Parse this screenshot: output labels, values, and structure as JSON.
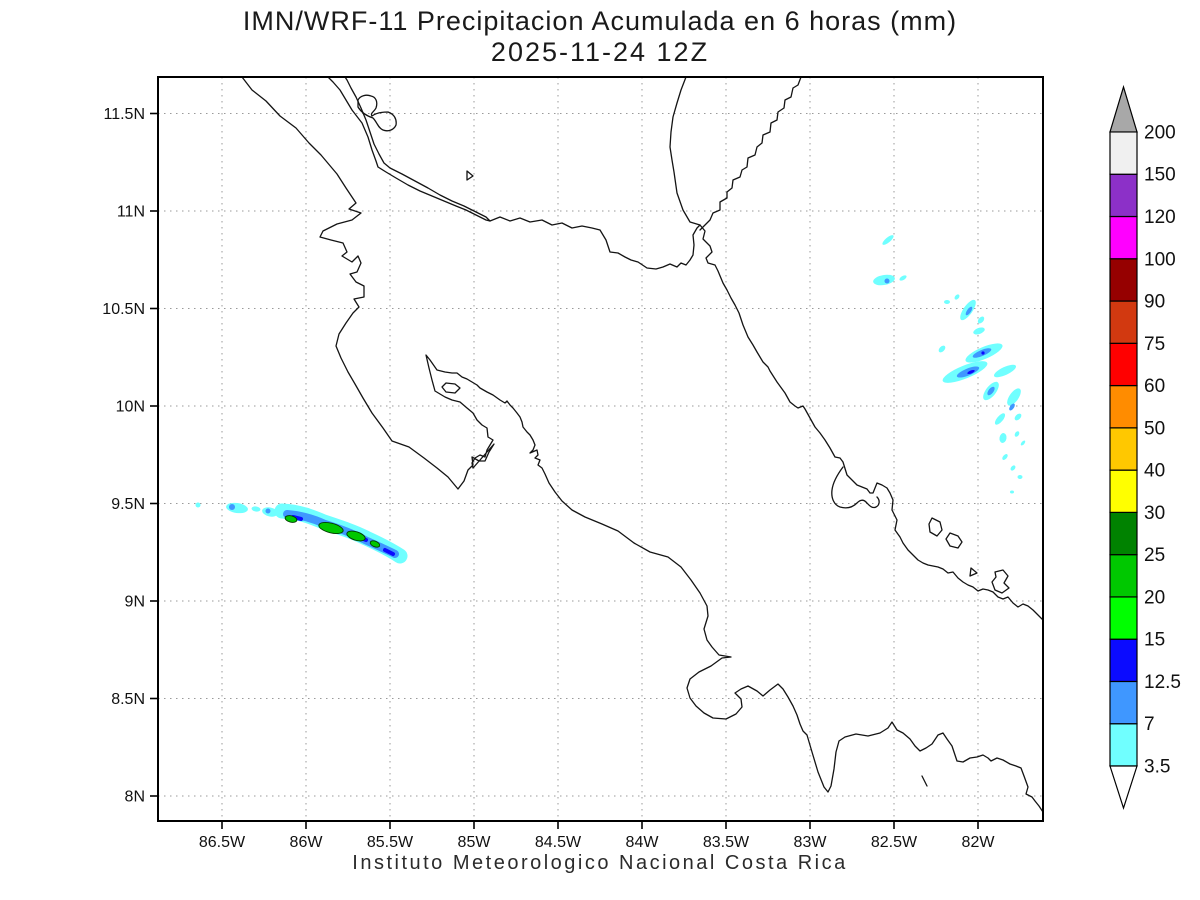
{
  "title": {
    "line1": "IMN/WRF-11 Precipitacion Acumulada en 6 horas (mm)",
    "line2": "2025-11-24 12Z"
  },
  "footer": {
    "caption": "Instituto Meteorologico Nacional Costa Rica"
  },
  "axes": {
    "x_ticks": [
      "86.5W",
      "86W",
      "85.5W",
      "85W",
      "84.5W",
      "84W",
      "83.5W",
      "83W",
      "82.5W",
      "82W"
    ],
    "y_ticks": [
      "11.5N",
      "11N",
      "10.5N",
      "10N",
      "9.5N",
      "9N",
      "8.5N",
      "8N"
    ]
  },
  "colorbar": {
    "units": "mm",
    "levels": [
      "3.5",
      "7",
      "12.5",
      "15",
      "20",
      "25",
      "30",
      "40",
      "50",
      "60",
      "75",
      "90",
      "100",
      "120",
      "150",
      "200"
    ],
    "segment_colors": [
      "#70ffff",
      "#3f97ff",
      "#0b0bff",
      "#00ff00",
      "#00c800",
      "#008200",
      "#ffff00",
      "#ffc800",
      "#ff8c00",
      "#ff0000",
      "#d23910",
      "#960000",
      "#ff00ff",
      "#8c30c8",
      "#f0f0f0"
    ],
    "over_color": "#a8a8a8",
    "under_color": "#ffffff"
  },
  "chart_data": {
    "type": "heatmap",
    "title": "IMN/WRF-11 Precipitacion Acumulada en 6 horas (mm)",
    "subtitle": "2025-11-24 12Z",
    "units": "mm",
    "x_tick_labels": [
      "86.5W",
      "86W",
      "85.5W",
      "85W",
      "84.5W",
      "84W",
      "83.5W",
      "83W",
      "82.5W",
      "82W"
    ],
    "y_tick_labels": [
      "11.5N",
      "11N",
      "10.5N",
      "10N",
      "9.5N",
      "9N",
      "8.5N",
      "8N"
    ],
    "x_range_deg_west": [
      86.9,
      81.6
    ],
    "y_range_deg_north": [
      7.9,
      11.7
    ],
    "grid": "dotted",
    "legend_position": "right",
    "levels_mm": [
      3.5,
      7,
      12.5,
      15,
      20,
      25,
      30,
      40,
      50,
      60,
      75,
      90,
      100,
      120,
      150,
      200
    ],
    "palette": [
      "#70ffff",
      "#3f97ff",
      "#0b0bff",
      "#00ff00",
      "#00c800",
      "#008200",
      "#ffff00",
      "#ffc800",
      "#ff8c00",
      "#ff0000",
      "#d23910",
      "#960000",
      "#ff00ff",
      "#8c30c8",
      "#f0f0f0"
    ],
    "region": "Costa Rica and surroundings (Pacific and Caribbean coasts, Lake Nicaragua, Bocas del Toro)",
    "features": [
      {
        "name": "pacific-offshore-rainband",
        "description": "Narrow NW-SE oriented rain streak over the Pacific southwest of the Nicoya Peninsula",
        "lat_range": "9.25N-9.5N",
        "lon_range": "86.3W-85.45W",
        "peak_mm": "20-30"
      },
      {
        "name": "caribbean-offshore-showers",
        "description": "Scattered NE-SW shower streaks over the Caribbean east of Costa Rica / Bocas del Toro",
        "lat_range": "9.7N-10.9N",
        "lon_range": "82.7W-81.6W",
        "peak_mm": "12.5-15"
      }
    ]
  }
}
